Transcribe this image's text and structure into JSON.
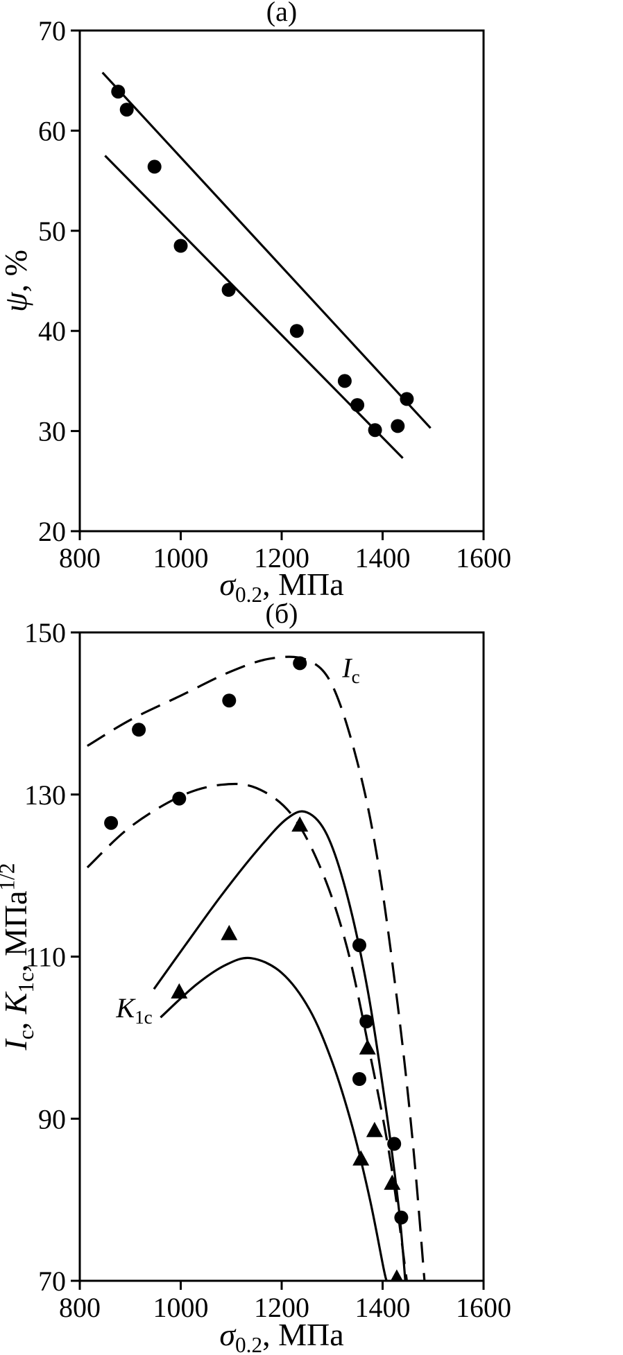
{
  "colors": {
    "ink": "#000000",
    "background": "#ffffff"
  },
  "chart_data": [
    {
      "type": "scatter",
      "title": "(а)",
      "xlabel_parts": [
        {
          "t": "σ",
          "i": true
        },
        {
          "t": "0.2",
          "sub": true
        },
        {
          "t": ", МПа"
        }
      ],
      "ylabel_parts": [
        {
          "t": "ψ",
          "i": true
        },
        {
          "t": ", %"
        }
      ],
      "xlim": [
        800,
        1600
      ],
      "ylim": [
        20,
        70
      ],
      "xticks": [
        800,
        1000,
        1200,
        1400,
        1600
      ],
      "yticks": [
        20,
        30,
        40,
        50,
        60,
        70
      ],
      "grid": false,
      "series": [
        {
          "name": "upper-bound-line",
          "type": "line",
          "dashed": false,
          "points": [
            [
              845,
              65.8
            ],
            [
              1495,
              30.3
            ]
          ]
        },
        {
          "name": "lower-bound-line",
          "type": "line",
          "dashed": false,
          "points": [
            [
              850,
              57.5
            ],
            [
              1440,
              27.3
            ]
          ]
        },
        {
          "name": "psi-data-points",
          "type": "scatter",
          "marker": "circle",
          "points": [
            [
              876,
              63.9
            ],
            [
              893,
              62.1
            ],
            [
              948,
              56.4
            ],
            [
              1000,
              48.5
            ],
            [
              1095,
              44.1
            ],
            [
              1230,
              40.0
            ],
            [
              1325,
              35.0
            ],
            [
              1350,
              32.6
            ],
            [
              1385,
              30.1
            ],
            [
              1430,
              30.5
            ],
            [
              1448,
              33.2
            ]
          ]
        }
      ],
      "annotations": []
    },
    {
      "type": "scatter",
      "title": "(б)",
      "xlabel_parts": [
        {
          "t": "σ",
          "i": true
        },
        {
          "t": "0.2",
          "sub": true
        },
        {
          "t": ", МПа"
        }
      ],
      "ylabel_parts": [
        {
          "t": "I",
          "i": true
        },
        {
          "t": "c",
          "sub": true
        },
        {
          "t": ", "
        },
        {
          "t": "K",
          "i": true
        },
        {
          "t": "1c",
          "sub": true
        },
        {
          "t": ",  МПа"
        },
        {
          "t": "1/2",
          "sup": true
        }
      ],
      "xlim": [
        800,
        1600
      ],
      "ylim": [
        70,
        150
      ],
      "xticks": [
        800,
        1000,
        1200,
        1400,
        1600
      ],
      "yticks": [
        70,
        90,
        110,
        130,
        150
      ],
      "grid": false,
      "series": [
        {
          "name": "ic-upper-trend",
          "type": "curve",
          "dashed": true,
          "points": [
            [
              815,
              136
            ],
            [
              900,
              139.2
            ],
            [
              1000,
              142.2
            ],
            [
              1100,
              145.2
            ],
            [
              1180,
              146.8
            ],
            [
              1250,
              146.6
            ],
            [
              1300,
              143.5
            ],
            [
              1350,
              134
            ],
            [
              1390,
              122
            ],
            [
              1430,
              104
            ],
            [
              1460,
              87
            ],
            [
              1483,
              70
            ]
          ]
        },
        {
          "name": "ic-lower-trend",
          "type": "curve",
          "dashed": true,
          "points": [
            [
              815,
              121
            ],
            [
              900,
              126
            ],
            [
              1000,
              129.8
            ],
            [
              1080,
              131.2
            ],
            [
              1150,
              130.8
            ],
            [
              1220,
              127.5
            ],
            [
              1280,
              120.5
            ],
            [
              1330,
              111
            ],
            [
              1375,
              98
            ],
            [
              1415,
              85
            ],
            [
              1448,
              70
            ]
          ]
        },
        {
          "name": "k1c-upper-trend",
          "type": "curve",
          "dashed": false,
          "points": [
            [
              947,
              106
            ],
            [
              1010,
              111.5
            ],
            [
              1080,
              117.5
            ],
            [
              1150,
              123
            ],
            [
              1210,
              127
            ],
            [
              1250,
              127.8
            ],
            [
              1290,
              125
            ],
            [
              1330,
              117.5
            ],
            [
              1370,
              106
            ],
            [
              1405,
              92
            ],
            [
              1432,
              79
            ],
            [
              1445,
              70
            ]
          ]
        },
        {
          "name": "k1c-lower-trend",
          "type": "curve",
          "dashed": false,
          "points": [
            [
              960,
              102.5
            ],
            [
              1030,
              106.5
            ],
            [
              1090,
              109
            ],
            [
              1140,
              109.8
            ],
            [
              1200,
              108
            ],
            [
              1255,
              103.5
            ],
            [
              1300,
              97
            ],
            [
              1340,
              89
            ],
            [
              1375,
              80
            ],
            [
              1402,
              71.5
            ],
            [
              1408,
              70
            ]
          ]
        },
        {
          "name": "ic-data-points",
          "type": "scatter",
          "marker": "circle",
          "points": [
            [
              862,
              126.5
            ],
            [
              917,
              138
            ],
            [
              997,
              129.5
            ],
            [
              1096,
              141.6
            ],
            [
              1236,
              146.2
            ],
            [
              1354,
              111.4
            ],
            [
              1368,
              102
            ],
            [
              1354,
              94.9
            ],
            [
              1423,
              86.9
            ],
            [
              1437,
              77.8
            ]
          ]
        },
        {
          "name": "k1c-data-points",
          "type": "scatter",
          "marker": "triangle",
          "points": [
            [
              997,
              105.6
            ],
            [
              1096,
              112.8
            ],
            [
              1236,
              126.2
            ],
            [
              1370,
              98.7
            ],
            [
              1357,
              85
            ],
            [
              1384,
              88.5
            ],
            [
              1419,
              82
            ],
            [
              1428,
              70.3
            ]
          ]
        }
      ],
      "annotations": [
        {
          "name": "ic-label",
          "x": 1320,
          "y": 144.5,
          "parts": [
            {
              "t": "I",
              "i": true
            },
            {
              "t": "c",
              "sub": true
            }
          ]
        },
        {
          "name": "k1c-label",
          "x": 872,
          "y": 102.5,
          "parts": [
            {
              "t": "K",
              "i": true
            },
            {
              "t": "1c",
              "sub": true
            }
          ]
        }
      ]
    }
  ]
}
